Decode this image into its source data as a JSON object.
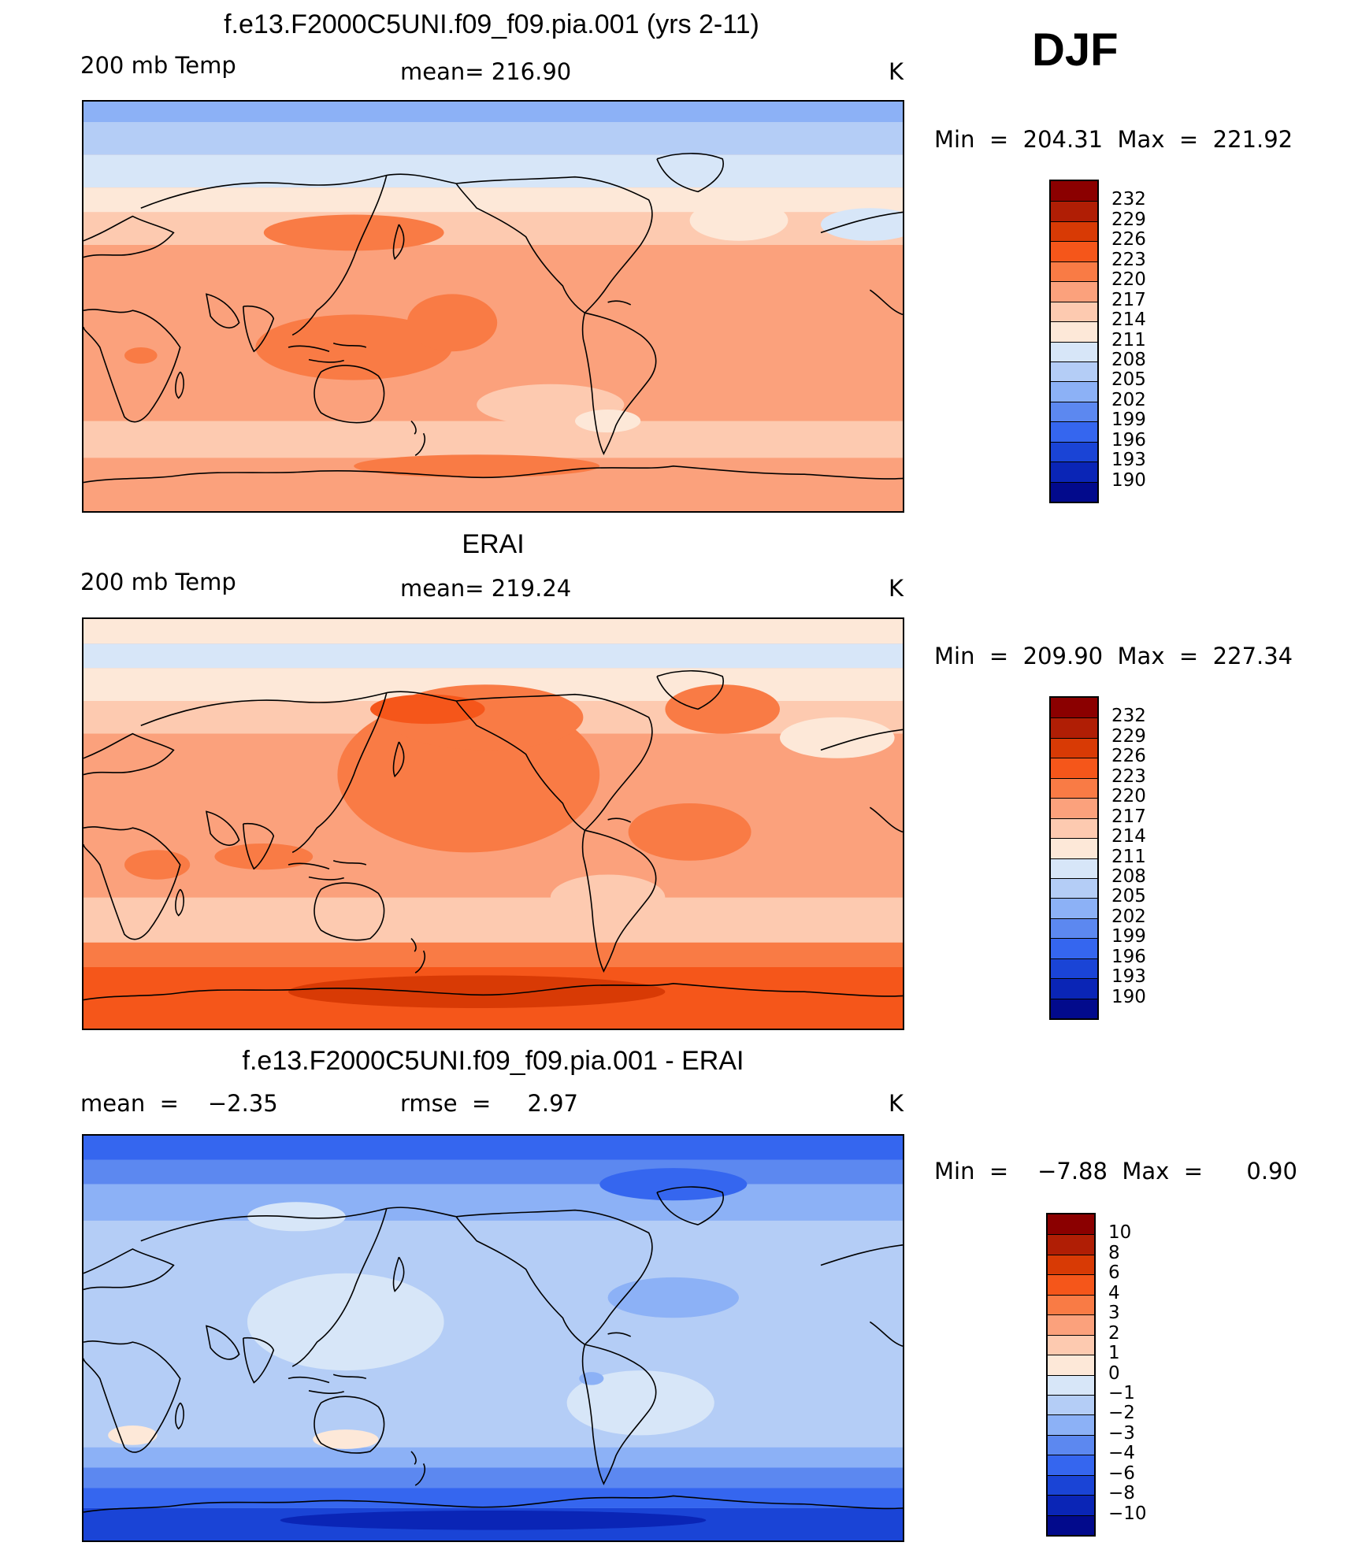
{
  "season": "DJF",
  "panels": [
    {
      "title": "f.e13.F2000C5UNI.f09_f09.pia.001 (yrs 2-11)",
      "left_label": "200 mb Temp",
      "center_label": "mean= 216.90",
      "units": "K",
      "minmax": "Min  =  204.31  Max  =  221.92",
      "map_name": "model-temperature-map",
      "palette": "full",
      "levels": [
        "232",
        "229",
        "226",
        "223",
        "220",
        "217",
        "214",
        "211",
        "208",
        "205",
        "202",
        "199",
        "196",
        "193",
        "190"
      ]
    },
    {
      "title": "ERAI",
      "left_label": "200 mb Temp",
      "center_label": "mean= 219.24",
      "units": "K",
      "minmax": "Min  =  209.90  Max  =  227.34",
      "map_name": "erai-temperature-map",
      "palette": "full",
      "levels": [
        "232",
        "229",
        "226",
        "223",
        "220",
        "217",
        "214",
        "211",
        "208",
        "205",
        "202",
        "199",
        "196",
        "193",
        "190"
      ]
    },
    {
      "title": "f.e13.F2000C5UNI.f09_f09.pia.001 - ERAI",
      "left_label": "mean  =    −2.35",
      "center_label": "rmse  =     2.97",
      "units": "K",
      "minmax": "Min  =    −7.88  Max  =      0.90",
      "map_name": "difference-map",
      "palette": "full",
      "levels": [
        "10",
        "8",
        "6",
        "4",
        "3",
        "2",
        "1",
        "0",
        "−1",
        "−2",
        "−3",
        "−4",
        "−6",
        "−8",
        "−10"
      ]
    }
  ],
  "colors": {
    "palette": [
      "#8b0000",
      "#b01e05",
      "#d83a05",
      "#f5561a",
      "#f97b45",
      "#fba17c",
      "#fdcab0",
      "#fde8d8",
      "#d7e6f8",
      "#b4cdf6",
      "#8cb1f6",
      "#5c88f0",
      "#3566ef",
      "#1a44d6",
      "#0a25b6",
      "#020a8c"
    ]
  },
  "chart_data": [
    {
      "type": "heatmap",
      "title": "f.e13.F2000C5UNI.f09_f09.pia.001 (yrs 2-11)",
      "variable": "200 mb Temp",
      "units": "K",
      "mean": 216.9,
      "min": 204.31,
      "max": 221.92,
      "contour_levels": [
        190,
        193,
        196,
        199,
        202,
        205,
        208,
        211,
        214,
        217,
        220,
        223,
        226,
        229,
        232
      ]
    },
    {
      "type": "heatmap",
      "title": "ERAI",
      "variable": "200 mb Temp",
      "units": "K",
      "mean": 219.24,
      "min": 209.9,
      "max": 227.34,
      "contour_levels": [
        190,
        193,
        196,
        199,
        202,
        205,
        208,
        211,
        214,
        217,
        220,
        223,
        226,
        229,
        232
      ]
    },
    {
      "type": "heatmap",
      "title": "f.e13.F2000C5UNI.f09_f09.pia.001 - ERAI",
      "variable": "200 mb Temp difference",
      "units": "K",
      "mean": -2.35,
      "rmse": 2.97,
      "min": -7.88,
      "max": 0.9,
      "contour_levels": [
        -10,
        -8,
        -6,
        -4,
        -3,
        -2,
        -1,
        0,
        1,
        2,
        3,
        4,
        6,
        8,
        10
      ]
    }
  ]
}
